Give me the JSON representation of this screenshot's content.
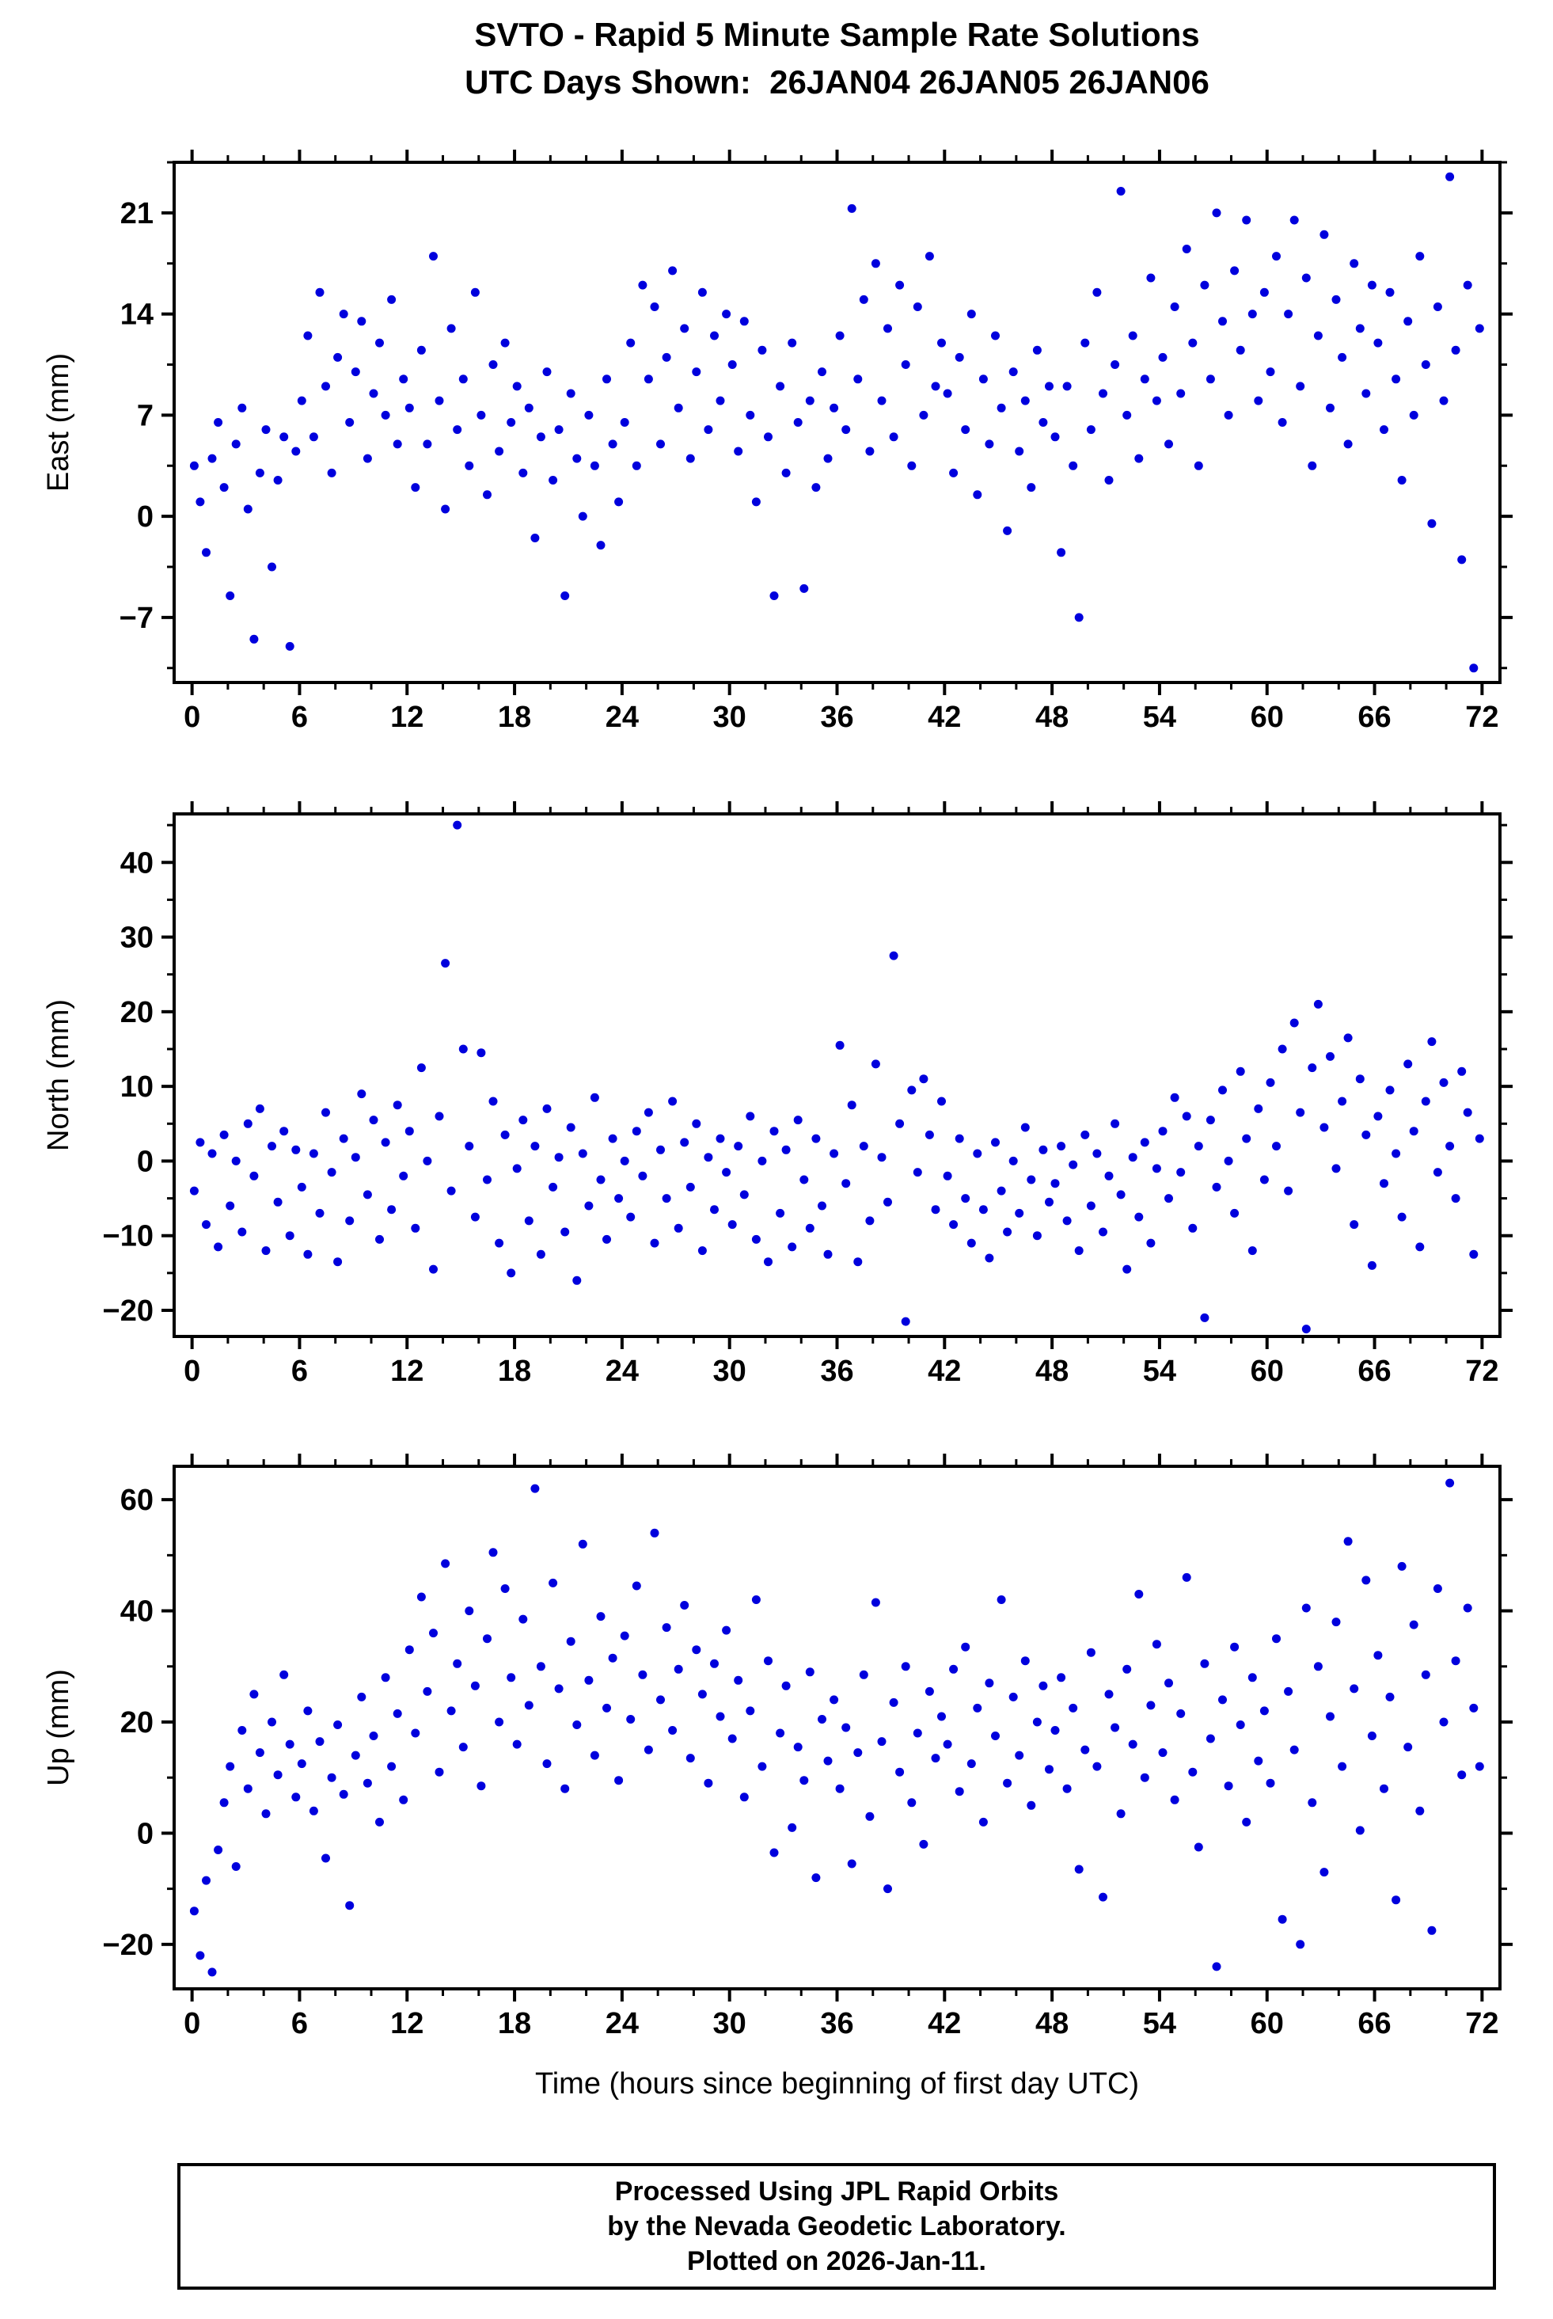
{
  "title": {
    "line1": "SVTO - Rapid 5 Minute Sample Rate Solutions",
    "line2": "UTC Days Shown:  26JAN04 26JAN05 26JAN06"
  },
  "footer": {
    "line1": "Processed Using JPL Rapid Orbits",
    "line2": "by the Nevada Geodetic Laboratory.",
    "line3": "Plotted on 2026-Jan-11."
  },
  "chart_data": {
    "type": "scatter",
    "point_color": "#0000dd",
    "frame_color": "#000000",
    "xlabel": "Time (hours since beginning of first day UTC)",
    "x_axis": {
      "lim": [
        -1,
        73
      ],
      "tick_min": 0,
      "tick_max": 72,
      "tick_step": 6,
      "minor_step": 2
    },
    "x_start": 0.12,
    "x_step": 0.3337,
    "charts": [
      {
        "name": "east",
        "ylabel": "East (mm)",
        "ylim": [
          -11.5,
          24.5
        ],
        "yticks": [
          -7,
          0,
          7,
          14,
          21
        ],
        "minor_step": 3.5,
        "y": [
          3.5,
          1.0,
          -2.5,
          4.0,
          6.5,
          2.0,
          -5.5,
          5.0,
          7.5,
          0.5,
          -8.5,
          3.0,
          6.0,
          -3.5,
          2.5,
          5.5,
          -9.0,
          4.5,
          8.0,
          12.5,
          5.5,
          15.5,
          9.0,
          3.0,
          11.0,
          14.0,
          6.5,
          10.0,
          13.5,
          4.0,
          8.5,
          12.0,
          7.0,
          15.0,
          5.0,
          9.5,
          7.5,
          2.0,
          11.5,
          5.0,
          18.0,
          8.0,
          0.5,
          13.0,
          6.0,
          9.5,
          3.5,
          15.5,
          7.0,
          1.5,
          10.5,
          4.5,
          12.0,
          6.5,
          9.0,
          3.0,
          7.5,
          -1.5,
          5.5,
          10.0,
          2.5,
          6.0,
          -5.5,
          8.5,
          4.0,
          0.0,
          7.0,
          3.5,
          -2.0,
          9.5,
          5.0,
          1.0,
          6.5,
          12.0,
          3.5,
          16.0,
          9.5,
          14.5,
          5.0,
          11.0,
          17.0,
          7.5,
          13.0,
          4.0,
          10.0,
          15.5,
          6.0,
          12.5,
          8.0,
          14.0,
          10.5,
          4.5,
          13.5,
          7.0,
          1.0,
          11.5,
          5.5,
          -5.5,
          9.0,
          3.0,
          12.0,
          6.5,
          -5.0,
          8.0,
          2.0,
          10.0,
          4.0,
          7.5,
          12.5,
          6.0,
          21.3,
          9.5,
          15.0,
          4.5,
          17.5,
          8.0,
          13.0,
          5.5,
          16.0,
          10.5,
          3.5,
          14.5,
          7.0,
          18.0,
          9.0,
          12.0,
          8.5,
          3.0,
          11.0,
          6.0,
          14.0,
          1.5,
          9.5,
          5.0,
          12.5,
          7.5,
          -1.0,
          10.0,
          4.5,
          8.0,
          2.0,
          11.5,
          6.5,
          9.0,
          5.5,
          -2.5,
          9.0,
          3.5,
          -7.0,
          12.0,
          6.0,
          15.5,
          8.5,
          2.5,
          10.5,
          22.5,
          7.0,
          12.5,
          4.0,
          9.5,
          16.5,
          8.0,
          11.0,
          5.0,
          14.5,
          8.5,
          18.5,
          12.0,
          3.5,
          16.0,
          9.5,
          21.0,
          13.5,
          7.0,
          17.0,
          11.5,
          20.5,
          14.0,
          8.0,
          15.5,
          10.0,
          18.0,
          6.5,
          14.0,
          20.5,
          9.0,
          16.5,
          3.5,
          12.5,
          19.5,
          7.5,
          15.0,
          11.0,
          5.0,
          17.5,
          13.0,
          8.5,
          16.0,
          12.0,
          6.0,
          15.5,
          9.5,
          2.5,
          13.5,
          7.0,
          18.0,
          10.5,
          -0.5,
          14.5,
          8.0,
          23.5,
          11.5,
          -3.0,
          16.0,
          -10.5,
          13.0
        ]
      },
      {
        "name": "north",
        "ylabel": "North (mm)",
        "ylim": [
          -23.5,
          46.5
        ],
        "yticks": [
          -20,
          -10,
          0,
          10,
          20,
          30,
          40
        ],
        "minor_step": 5,
        "y": [
          -4.0,
          2.5,
          -8.5,
          1.0,
          -11.5,
          3.5,
          -6.0,
          0.0,
          -9.5,
          5.0,
          -2.0,
          7.0,
          -12.0,
          2.0,
          -5.5,
          4.0,
          -10.0,
          1.5,
          -3.5,
          -12.5,
          1.0,
          -7.0,
          6.5,
          -1.5,
          -13.5,
          3.0,
          -8.0,
          0.5,
          9.0,
          -4.5,
          5.5,
          -10.5,
          2.5,
          -6.5,
          7.5,
          -2.0,
          4.0,
          -9.0,
          12.5,
          0.0,
          -14.5,
          6.0,
          26.5,
          -4.0,
          45.0,
          15.0,
          2.0,
          -7.5,
          14.5,
          -2.5,
          8.0,
          -11.0,
          3.5,
          -15.0,
          -1.0,
          5.5,
          -8.0,
          2.0,
          -12.5,
          7.0,
          -3.5,
          0.5,
          -9.5,
          4.5,
          -16.0,
          1.0,
          -6.0,
          8.5,
          -2.5,
          -10.5,
          3.0,
          -5.0,
          0.0,
          -7.5,
          4.0,
          -2.0,
          6.5,
          -11.0,
          1.5,
          -5.0,
          8.0,
          -9.0,
          2.5,
          -3.5,
          5.0,
          -12.0,
          0.5,
          -6.5,
          3.0,
          -1.5,
          -8.5,
          2.0,
          -4.5,
          6.0,
          -10.5,
          0.0,
          -13.5,
          4.0,
          -7.0,
          1.5,
          -11.5,
          5.5,
          -2.5,
          -9.0,
          3.0,
          -6.0,
          -12.5,
          1.0,
          15.5,
          -3.0,
          7.5,
          -13.5,
          2.0,
          -8.0,
          13.0,
          0.5,
          -5.5,
          27.5,
          5.0,
          -21.5,
          9.5,
          -1.5,
          11.0,
          3.5,
          -6.5,
          8.0,
          -2.0,
          -8.5,
          3.0,
          -5.0,
          -11.0,
          1.0,
          -6.5,
          -13.0,
          2.5,
          -4.0,
          -9.5,
          0.0,
          -7.0,
          4.5,
          -2.5,
          -10.0,
          1.5,
          -5.5,
          -3.0,
          2.0,
          -8.0,
          -0.5,
          -12.0,
          3.5,
          -6.0,
          1.0,
          -9.5,
          -2.0,
          5.0,
          -4.5,
          -14.5,
          0.5,
          -7.5,
          2.5,
          -11.0,
          -1.0,
          4.0,
          -5.0,
          8.5,
          -1.5,
          6.0,
          -9.0,
          2.0,
          -21.0,
          5.5,
          -3.5,
          9.5,
          0.0,
          -7.0,
          12.0,
          3.0,
          -12.0,
          7.0,
          -2.5,
          10.5,
          2.0,
          15.0,
          -4.0,
          18.5,
          6.5,
          -22.5,
          12.5,
          21.0,
          4.5,
          14.0,
          -1.0,
          8.0,
          16.5,
          -8.5,
          11.0,
          3.5,
          -14.0,
          6.0,
          -3.0,
          9.5,
          1.0,
          -7.5,
          13.0,
          4.0,
          -11.5,
          8.0,
          16.0,
          -1.5,
          10.5,
          2.0,
          -5.0,
          12.0,
          6.5,
          -12.5,
          3.0
        ]
      },
      {
        "name": "up",
        "ylabel": "Up (mm)",
        "ylim": [
          -28,
          66
        ],
        "yticks": [
          -20,
          0,
          20,
          40,
          60
        ],
        "minor_step": 10,
        "y": [
          -14.0,
          -22.0,
          -8.5,
          -25.0,
          -3.0,
          5.5,
          12.0,
          -6.0,
          18.5,
          8.0,
          25.0,
          14.5,
          3.5,
          20.0,
          10.5,
          28.5,
          16.0,
          6.5,
          12.5,
          22.0,
          4.0,
          16.5,
          -4.5,
          10.0,
          19.5,
          7.0,
          -13.0,
          14.0,
          24.5,
          9.0,
          17.5,
          2.0,
          28.0,
          12.0,
          21.5,
          6.0,
          33.0,
          18.0,
          42.5,
          25.5,
          36.0,
          11.0,
          48.5,
          22.0,
          30.5,
          15.5,
          40.0,
          26.5,
          8.5,
          35.0,
          50.5,
          20.0,
          44.0,
          28.0,
          16.0,
          38.5,
          23.0,
          62.0,
          30.0,
          12.5,
          45.0,
          26.0,
          8.0,
          34.5,
          19.5,
          52.0,
          27.5,
          14.0,
          39.0,
          22.5,
          31.5,
          9.5,
          35.5,
          20.5,
          44.5,
          28.5,
          15.0,
          54.0,
          24.0,
          37.0,
          18.5,
          29.5,
          41.0,
          13.5,
          33.0,
          25.0,
          9.0,
          30.5,
          21.0,
          36.5,
          17.0,
          27.5,
          6.5,
          22.0,
          42.0,
          12.0,
          31.0,
          -3.5,
          18.0,
          26.5,
          1.0,
          15.5,
          9.5,
          29.0,
          -8.0,
          20.5,
          13.0,
          24.0,
          8.0,
          19.0,
          -5.5,
          14.5,
          28.5,
          3.0,
          41.5,
          16.5,
          -10.0,
          23.5,
          11.0,
          30.0,
          5.5,
          18.0,
          -2.0,
          25.5,
          13.5,
          21.0,
          16.0,
          29.5,
          7.5,
          33.5,
          12.5,
          22.5,
          2.0,
          27.0,
          17.5,
          42.0,
          9.0,
          24.5,
          14.0,
          31.0,
          5.0,
          20.0,
          26.5,
          11.5,
          18.5,
          28.0,
          8.0,
          22.5,
          -6.5,
          15.0,
          32.5,
          12.0,
          -11.5,
          25.0,
          19.0,
          3.5,
          29.5,
          16.0,
          43.0,
          10.0,
          23.0,
          34.0,
          14.5,
          27.0,
          6.0,
          21.5,
          46.0,
          11.0,
          -2.5,
          30.5,
          17.0,
          -24.0,
          24.0,
          8.5,
          33.5,
          19.5,
          2.0,
          28.0,
          13.0,
          22.0,
          9.0,
          35.0,
          -15.5,
          25.5,
          15.0,
          -20.0,
          40.5,
          5.5,
          30.0,
          -7.0,
          21.0,
          38.0,
          12.0,
          52.5,
          26.0,
          0.5,
          45.5,
          17.5,
          32.0,
          8.0,
          24.5,
          -12.0,
          48.0,
          15.5,
          37.5,
          4.0,
          28.5,
          -17.5,
          44.0,
          20.0,
          63.0,
          31.0,
          10.5,
          40.5,
          22.5,
          12.0
        ]
      }
    ]
  }
}
